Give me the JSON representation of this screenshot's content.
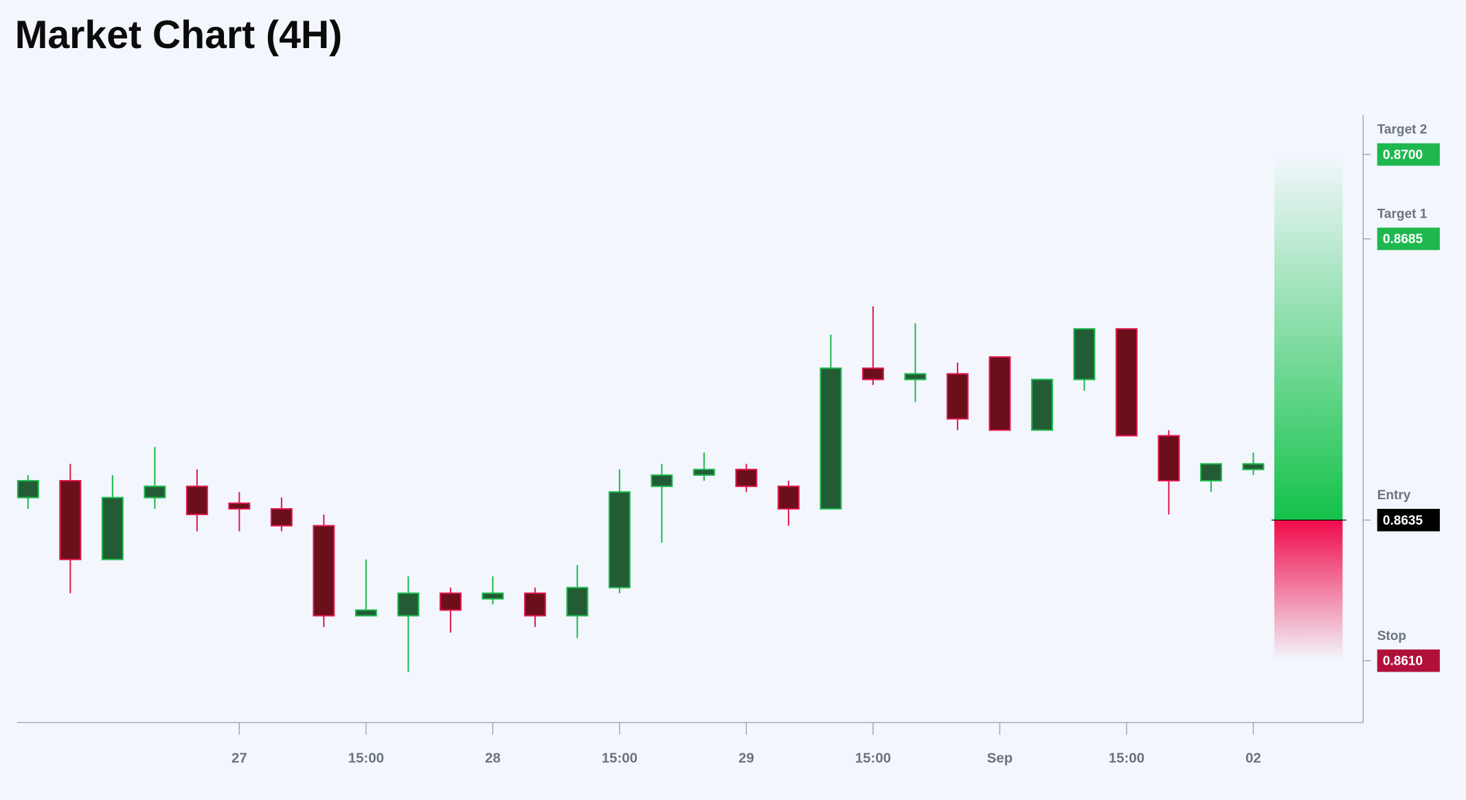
{
  "chart_data": {
    "type": "candlestick",
    "title": "Market Chart (4H)",
    "categories": [
      null,
      null,
      null,
      null,
      null,
      "27",
      null,
      null,
      "15:00",
      null,
      null,
      "28",
      null,
      null,
      "15:00",
      null,
      null,
      "29",
      null,
      null,
      "15:00",
      null,
      null,
      "Sep",
      null,
      null,
      "15:00",
      null,
      null,
      "02"
    ],
    "open": [
      0.8639,
      0.8642,
      0.8628,
      0.8639,
      0.8641,
      0.8638,
      0.8637,
      0.8634,
      0.8618,
      0.8618,
      0.8622,
      0.8621,
      0.8622,
      0.8618,
      0.8623,
      0.8641,
      0.8643,
      0.8644,
      0.8641,
      0.8637,
      0.8662,
      0.866,
      0.8661,
      0.8664,
      0.8651,
      0.866,
      0.8669,
      0.865,
      0.8642,
      0.8644
    ],
    "high": [
      0.8643,
      0.8645,
      0.8643,
      0.8648,
      0.8644,
      0.864,
      0.8639,
      0.8636,
      0.8628,
      0.8625,
      0.8623,
      0.8625,
      0.8623,
      0.8627,
      0.8644,
      0.8645,
      0.8647,
      0.8645,
      0.8642,
      0.8668,
      0.8673,
      0.867,
      0.8663,
      0.8664,
      0.866,
      0.8669,
      0.8669,
      0.8651,
      0.8645,
      0.8647
    ],
    "low": [
      0.8637,
      0.8622,
      0.8628,
      0.8637,
      0.8633,
      0.8633,
      0.8633,
      0.8616,
      0.8618,
      0.8608,
      0.8615,
      0.862,
      0.8616,
      0.8614,
      0.8622,
      0.8631,
      0.8642,
      0.864,
      0.8634,
      0.8637,
      0.8659,
      0.8656,
      0.8651,
      0.8651,
      0.8651,
      0.8658,
      0.865,
      0.8636,
      0.864,
      0.8643
    ],
    "close": [
      0.8642,
      0.8628,
      0.8639,
      0.8641,
      0.8636,
      0.8637,
      0.8634,
      0.8618,
      0.8619,
      0.8622,
      0.8619,
      0.8622,
      0.8618,
      0.8623,
      0.864,
      0.8643,
      0.8644,
      0.8641,
      0.8637,
      0.8662,
      0.866,
      0.8661,
      0.8653,
      0.8651,
      0.866,
      0.8669,
      0.865,
      0.8642,
      0.8645,
      0.8645
    ],
    "up_color": "#235c34",
    "up_border": "#1fb84f",
    "down_color": "#6b0f1a",
    "down_border": "#e0174f",
    "ylim": [
      0.8599,
      0.8707
    ],
    "levels": [
      {
        "name": "Target 2",
        "value": 0.87,
        "label": "0.8700",
        "color": "#1fb84f"
      },
      {
        "name": "Target 1",
        "value": 0.8685,
        "label": "0.8685",
        "color": "#1fb84f"
      },
      {
        "name": "Entry",
        "value": 0.8635,
        "label": "0.8635",
        "color": "#000000"
      },
      {
        "name": "Stop",
        "value": 0.861,
        "label": "0.8610",
        "color": "#b0103a"
      }
    ]
  }
}
